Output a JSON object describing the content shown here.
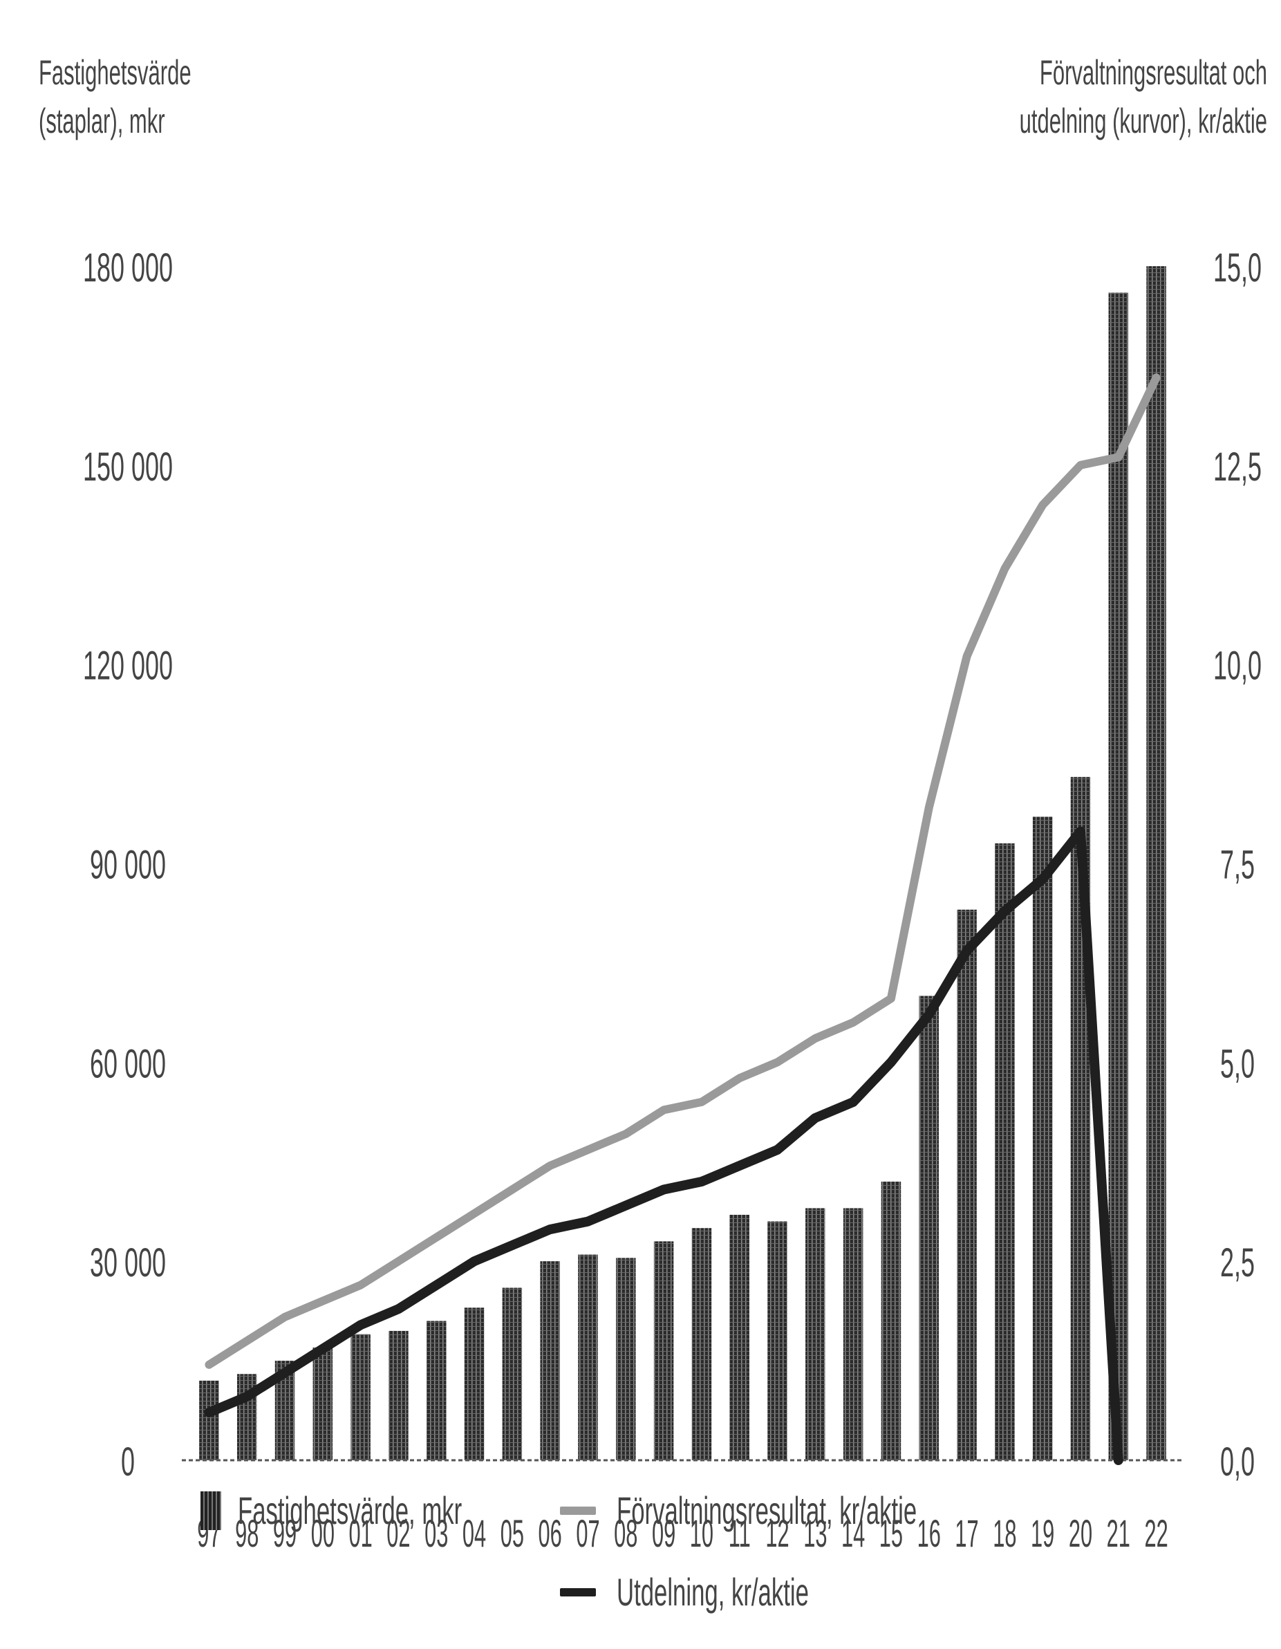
{
  "titles": {
    "left_line1": "Fastighetsvärde",
    "left_line2": "(staplar), mkr",
    "right_line1": "Förvaltningsresultat och",
    "right_line2": "utdelning (kurvor), kr/aktie"
  },
  "legend": {
    "bars": "Fastighetsvärde, mkr",
    "line1": "Förvaltningsresultat, kr/aktie",
    "line2": "Utdelning, kr/aktie"
  },
  "chart_data": {
    "type": "bar",
    "categories": [
      "97",
      "98",
      "99",
      "00",
      "01",
      "02",
      "03",
      "04",
      "05",
      "06",
      "07",
      "08",
      "09",
      "10",
      "11",
      "12",
      "13",
      "14",
      "15",
      "16",
      "17",
      "18",
      "19",
      "20",
      "21",
      "22"
    ],
    "left_axis": {
      "label": "Fastighetsvärde (staplar), mkr",
      "ylim": [
        0,
        180000
      ],
      "ticks": [
        0,
        30000,
        60000,
        90000,
        120000,
        150000,
        180000
      ],
      "tick_labels": [
        "0",
        "30 000",
        "60 000",
        "90 000",
        "120 000",
        "150 000",
        "180 000"
      ]
    },
    "right_axis": {
      "label": "Förvaltningsresultat och utdelning (kurvor), kr/aktie",
      "ylim": [
        0,
        15
      ],
      "ticks": [
        0,
        2.5,
        5,
        7.5,
        10,
        12.5,
        15
      ],
      "tick_labels": [
        "0,0",
        "2,5",
        "5,0",
        "7,5",
        "10,0",
        "12,5",
        "15,0"
      ]
    },
    "series": [
      {
        "name": "Fastighetsvärde, mkr",
        "type": "bar",
        "axis": "left",
        "values": [
          12000,
          13000,
          15000,
          17000,
          19000,
          19500,
          21000,
          23000,
          26000,
          30000,
          31000,
          30500,
          33000,
          35000,
          37000,
          36000,
          38000,
          38000,
          42000,
          70000,
          83000,
          93000,
          97000,
          103000,
          176000,
          180000
        ]
      },
      {
        "name": "Förvaltningsresultat, kr/aktie",
        "type": "line",
        "axis": "right",
        "values": [
          1.2,
          1.5,
          1.8,
          2.0,
          2.2,
          2.5,
          2.8,
          3.1,
          3.4,
          3.7,
          3.9,
          4.1,
          4.4,
          4.5,
          4.8,
          5.0,
          5.3,
          5.5,
          5.8,
          8.2,
          10.1,
          11.2,
          12.0,
          12.5,
          12.6,
          13.6
        ]
      },
      {
        "name": "Utdelning, kr/aktie",
        "type": "line",
        "axis": "right",
        "values": [
          0.6,
          0.8,
          1.1,
          1.4,
          1.7,
          1.9,
          2.2,
          2.5,
          2.7,
          2.9,
          3.0,
          3.2,
          3.4,
          3.5,
          3.7,
          3.9,
          4.3,
          4.5,
          5.0,
          5.6,
          6.4,
          6.9,
          7.3,
          7.9,
          0.0,
          null
        ]
      }
    ],
    "colors": {
      "bars": "#2b2b2b",
      "line1": "#9a9a9a",
      "line2": "#1f1f1f",
      "axis": "#555555"
    },
    "grid": false,
    "legend_position": "bottom"
  }
}
